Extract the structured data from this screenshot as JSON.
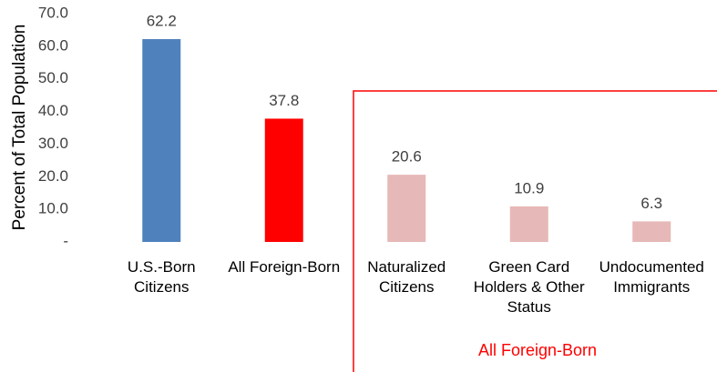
{
  "chart_data": {
    "type": "bar",
    "y_label": "Percent of Total Population",
    "categories": [
      "U.S.-Born Citizens",
      "All Foreign-Born",
      "Naturalized Citizens",
      "Green Card Holders & Other Status",
      "Undocumented Immigrants"
    ],
    "values": [
      62.2,
      37.8,
      20.6,
      10.9,
      6.3
    ],
    "colors": [
      "#4f81bd",
      "#ff0000",
      "#e6b8b7",
      "#e6b8b7",
      "#e6b8b7"
    ],
    "ylim": [
      0,
      70
    ],
    "yticks": [
      {
        "value": 0,
        "label": "-"
      },
      {
        "value": 10,
        "label": "10.0"
      },
      {
        "value": 20,
        "label": "20.0"
      },
      {
        "value": 30,
        "label": "30.0"
      },
      {
        "value": 40,
        "label": "40.0"
      },
      {
        "value": 50,
        "label": "50.0"
      },
      {
        "value": 60,
        "label": "60.0"
      },
      {
        "value": 70,
        "label": "70.0"
      }
    ],
    "grid": false,
    "annotation": "All Foreign-Born",
    "annotation_color": "#ff0000"
  }
}
